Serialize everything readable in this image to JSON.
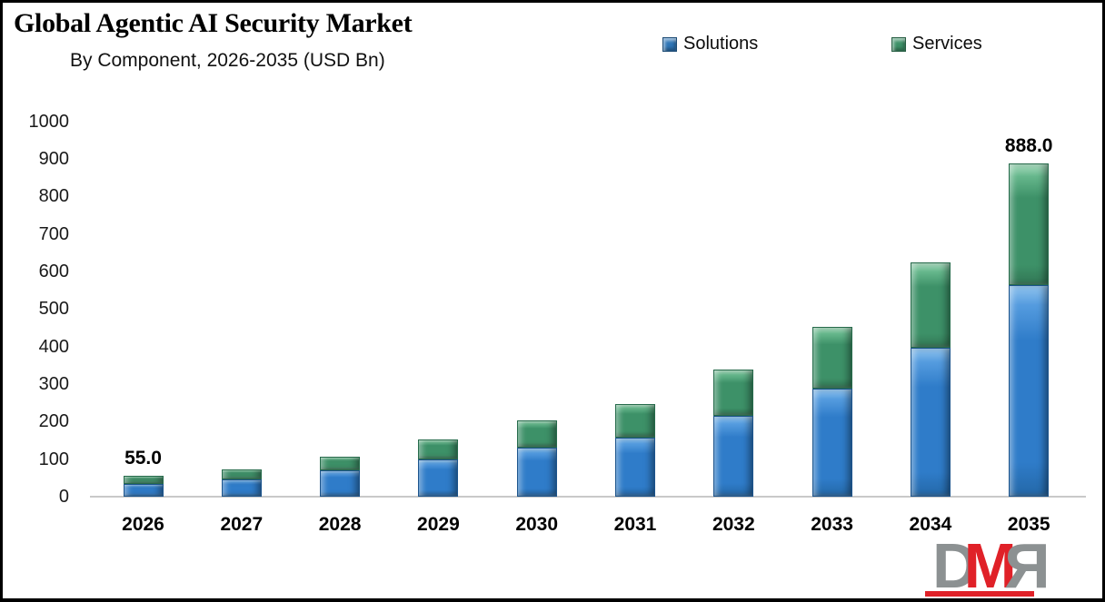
{
  "header": {
    "title": "Global Agentic AI Security Market",
    "subtitle": "By Component, 2026-2035 (USD Bn)"
  },
  "legend": {
    "position": "top",
    "items": [
      {
        "label": "Solutions",
        "color": "#2E75B6"
      },
      {
        "label": "Services",
        "color": "#3D9168"
      }
    ]
  },
  "chart_data": {
    "type": "bar",
    "stacked": true,
    "title": "Global Agentic AI Security Market",
    "subtitle": "By Component, 2026-2035 (USD Bn)",
    "xlabel": "",
    "ylabel": "",
    "ylim": [
      0,
      1000
    ],
    "yticks": [
      0,
      100,
      200,
      300,
      400,
      500,
      600,
      700,
      800,
      900,
      1000
    ],
    "grid": false,
    "categories": [
      "2026",
      "2027",
      "2028",
      "2029",
      "2030",
      "2031",
      "2032",
      "2033",
      "2034",
      "2035"
    ],
    "series": [
      {
        "name": "Solutions",
        "color": "#2F7CC9",
        "values": [
          35,
          46,
          69,
          98,
          130,
          158,
          215,
          287,
          398,
          564
        ]
      },
      {
        "name": "Services",
        "color": "#3D9168",
        "values": [
          20,
          27,
          38,
          55,
          73,
          90,
          123,
          166,
          227,
          324
        ]
      }
    ],
    "totals": [
      55,
      73,
      107,
      153,
      203,
      248,
      338,
      453,
      625,
      888
    ],
    "data_labels": [
      {
        "category": "2026",
        "text": "55.0"
      },
      {
        "category": "2035",
        "text": "888.0"
      }
    ]
  },
  "logo": {
    "letter_d": "D",
    "letter_m": "M",
    "letter_r": "R"
  },
  "colors": {
    "solutions": "#2F7CC9",
    "services": "#3D9168",
    "axis_line": "#C9C9C9",
    "logo_gray": "#8C9192",
    "logo_red": "#E02128"
  }
}
